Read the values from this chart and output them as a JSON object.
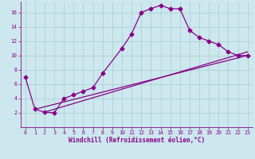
{
  "title": "",
  "xlabel": "Windchill (Refroidissement éolien,°C)",
  "bg_color": "#cce8ee",
  "grid_color": "#aacccc",
  "line_color": "#880088",
  "xlim": [
    -0.5,
    23.5
  ],
  "ylim": [
    0,
    17.5
  ],
  "xticks": [
    0,
    1,
    2,
    3,
    4,
    5,
    6,
    7,
    8,
    9,
    10,
    11,
    12,
    13,
    14,
    15,
    16,
    17,
    18,
    19,
    20,
    21,
    22,
    23
  ],
  "yticks": [
    2,
    4,
    6,
    8,
    10,
    12,
    14,
    16
  ],
  "series1_x": [
    0,
    1,
    2,
    3,
    4,
    5,
    6,
    7,
    8,
    10,
    11,
    12,
    13,
    14,
    15,
    16,
    17,
    18,
    19,
    20,
    21,
    22,
    23
  ],
  "series1_y": [
    7,
    2.5,
    2.1,
    2.0,
    4.0,
    4.5,
    5.0,
    5.5,
    7.5,
    11.0,
    13.0,
    16.0,
    16.5,
    17.0,
    16.5,
    16.5,
    13.5,
    12.5,
    12.0,
    11.5,
    10.5,
    10.0,
    10.0
  ],
  "series2_x": [
    1,
    23
  ],
  "series2_y": [
    2.5,
    10.0
  ],
  "series3_x": [
    2,
    23
  ],
  "series3_y": [
    2.1,
    10.5
  ],
  "marker": "D",
  "markersize": 2.5,
  "linewidth": 0.9,
  "tick_fontsize": 4.8,
  "label_fontsize": 5.5
}
